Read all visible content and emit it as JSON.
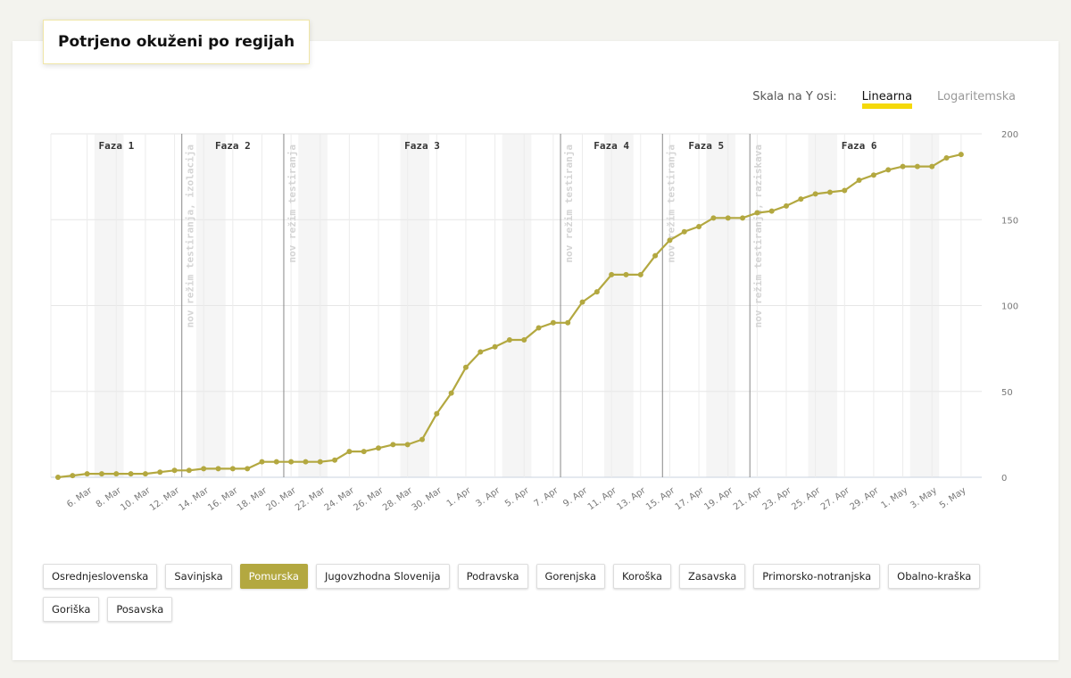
{
  "title": "Potrjeno okuženi po regijah",
  "scale": {
    "label": "Skala na Y osi:",
    "options": [
      "Linearna",
      "Logaritemska"
    ],
    "selected": "Linearna"
  },
  "colors": {
    "line": "#b3a840",
    "accent": "#f5d90a",
    "active_region": "#b3a840"
  },
  "regions": {
    "items": [
      "Osrednjeslovenska",
      "Savinjska",
      "Pomurska",
      "Jugovzhodna Slovenija",
      "Podravska",
      "Gorenjska",
      "Koroška",
      "Zasavska",
      "Primorsko-notranjska",
      "Obalno-kraška",
      "Goriška",
      "Posavska"
    ],
    "selected": "Pomurska"
  },
  "chart_data": {
    "type": "line",
    "title": "Potrjeno okuženi po regijah",
    "series": [
      {
        "name": "Pomurska",
        "values": [
          0,
          1,
          2,
          2,
          2,
          2,
          2,
          3,
          4,
          4,
          5,
          5,
          5,
          5,
          9,
          9,
          9,
          9,
          9,
          10,
          15,
          15,
          17,
          19,
          19,
          22,
          37,
          49,
          64,
          73,
          76,
          80,
          80,
          87,
          90,
          90,
          102,
          108,
          118,
          118,
          118,
          129,
          138,
          143,
          146,
          151,
          151,
          151,
          154,
          155,
          158,
          162,
          165,
          166,
          167,
          173,
          176,
          179,
          181,
          181,
          181,
          186,
          188
        ]
      }
    ],
    "start_date": "2020-03-04",
    "x_tick_labels": [
      "6. Mar",
      "8. Mar",
      "10. Mar",
      "12. Mar",
      "14. Mar",
      "16. Mar",
      "18. Mar",
      "20. Mar",
      "22. Mar",
      "24. Mar",
      "26. Mar",
      "28. Mar",
      "30. Mar",
      "1. Apr",
      "3. Apr",
      "5. Apr",
      "7. Apr",
      "9. Apr",
      "11. Apr",
      "13. Apr",
      "15. Apr",
      "17. Apr",
      "19. Apr",
      "21. Apr",
      "23. Apr",
      "25. Apr",
      "27. Apr",
      "29. Apr",
      "1. May",
      "3. May",
      "5. May"
    ],
    "y_ticks": [
      0,
      50,
      100,
      150,
      200
    ],
    "ylim": [
      0,
      200
    ],
    "y_axis_position": "right",
    "grid": true,
    "phases": [
      {
        "label": "Faza 1",
        "from": "2020-03-04",
        "to": "2020-03-13"
      },
      {
        "label": "Faza 2",
        "from": "2020-03-13",
        "to": "2020-03-20"
      },
      {
        "label": "Faza 3",
        "from": "2020-03-20",
        "to": "2020-04-08"
      },
      {
        "label": "Faza 4",
        "from": "2020-04-08",
        "to": "2020-04-15"
      },
      {
        "label": "Faza 5",
        "from": "2020-04-15",
        "to": "2020-04-21"
      },
      {
        "label": "Faza 6",
        "from": "2020-04-21",
        "to": "2020-05-06"
      }
    ],
    "annotations": [
      {
        "date": "2020-03-13",
        "label": "nov režim testiranja, izolacija"
      },
      {
        "date": "2020-03-20",
        "label": "nov režim testiranja"
      },
      {
        "date": "2020-04-08",
        "label": "nov režim testiranja"
      },
      {
        "date": "2020-04-15",
        "label": "nov režim testiranja"
      },
      {
        "date": "2020-04-21",
        "label": "nov režim testiranja, raziskava"
      }
    ],
    "weekends": [
      [
        "2020-03-07",
        "2020-03-08"
      ],
      [
        "2020-03-14",
        "2020-03-15"
      ],
      [
        "2020-03-21",
        "2020-03-22"
      ],
      [
        "2020-03-28",
        "2020-03-29"
      ],
      [
        "2020-04-04",
        "2020-04-05"
      ],
      [
        "2020-04-11",
        "2020-04-12"
      ],
      [
        "2020-04-18",
        "2020-04-19"
      ],
      [
        "2020-04-25",
        "2020-04-26"
      ],
      [
        "2020-05-02",
        "2020-05-03"
      ]
    ]
  }
}
